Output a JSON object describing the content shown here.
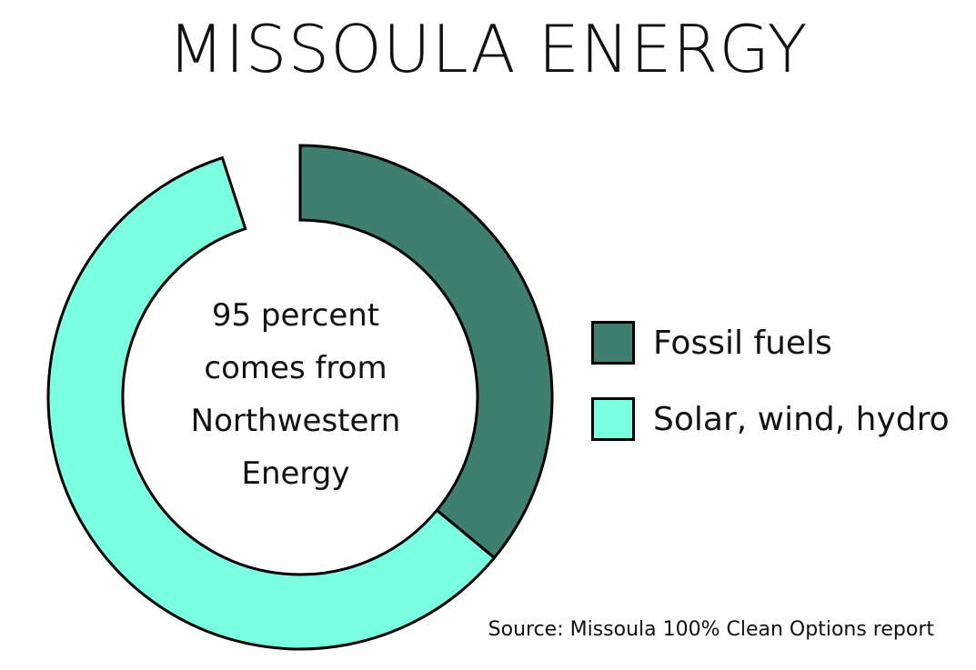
{
  "chart_data": {
    "type": "pie",
    "title": "MISSOULA ENERGY",
    "center_text": [
      "95 percent",
      "comes from",
      "Northwestern",
      "Energy"
    ],
    "series": [
      {
        "name": "Fossil fuels",
        "value": 36,
        "color": "#3f7f70"
      },
      {
        "name": "Solar, wind, hydro",
        "value": 59,
        "color": "#7affe0"
      }
    ],
    "gap_value": 5,
    "legend_position": "right",
    "source": "Source: Missoula 100% Clean Options report"
  }
}
